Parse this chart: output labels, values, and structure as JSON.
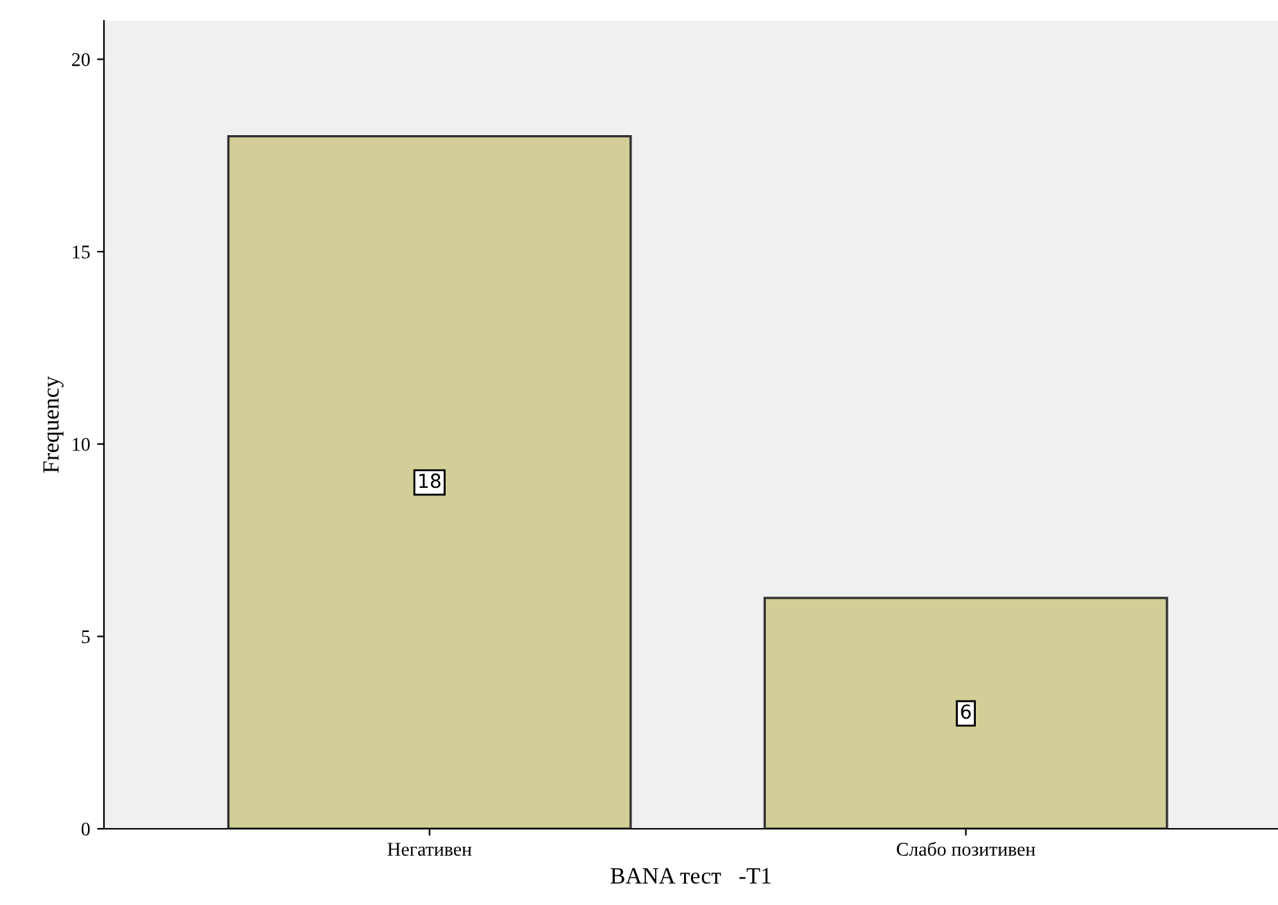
{
  "chart_data": {
    "type": "bar",
    "xlabel": "BANA тест   -T1",
    "ylabel": "Frequency",
    "categories": [
      "Негативен",
      "Слабо позитивен"
    ],
    "values": [
      18,
      6
    ],
    "color": "#d3ce97",
    "ylim": [
      0,
      21
    ],
    "yticks": [
      0,
      5,
      10,
      15,
      20
    ],
    "grid": false,
    "data_labels": true
  }
}
